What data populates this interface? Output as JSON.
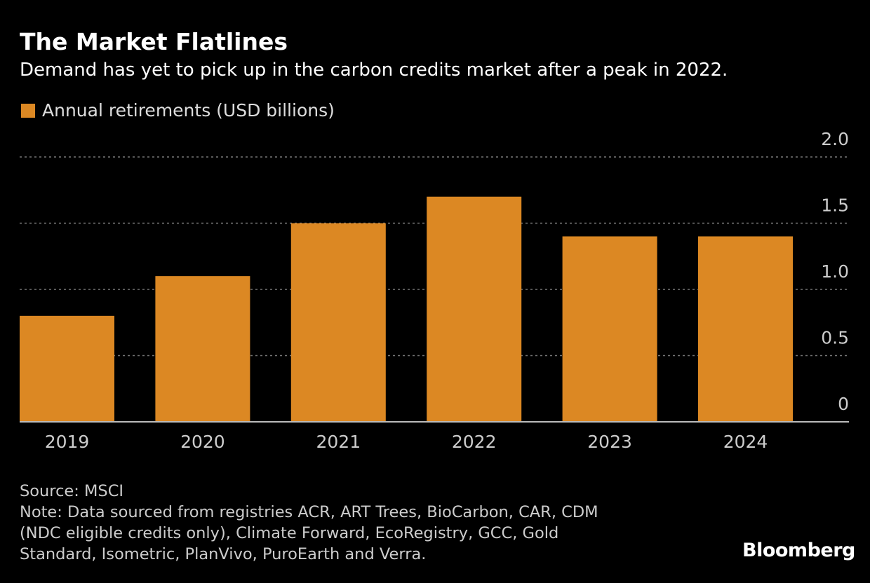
{
  "chart_data": {
    "type": "bar",
    "title": "The Market Flatlines",
    "subtitle": "Demand has yet to pick up in the carbon credits market after a peak in 2022.",
    "legend": [
      {
        "name": "Annual retirements (USD billions)",
        "color": "#dc8823"
      }
    ],
    "legend_placement": "top-left",
    "categories": [
      "2019",
      "2020",
      "2021",
      "2022",
      "2023",
      "2024"
    ],
    "series": [
      {
        "name": "Annual retirements (USD billions)",
        "values": [
          0.8,
          1.1,
          1.5,
          1.7,
          1.4,
          1.4
        ]
      }
    ],
    "ylim": [
      0,
      2.0
    ],
    "yticks": [
      0,
      0.5,
      1.0,
      1.5,
      2.0
    ],
    "ytick_labels": [
      "0",
      "0.5",
      "1.0",
      "1.5",
      "2.0"
    ],
    "y_axis_side": "right",
    "grid": "horizontal dotted",
    "xlabel": "",
    "ylabel": ""
  },
  "footer": {
    "source": "Source: MSCI",
    "note_lines": [
      "Note: Data sourced from registries ACR, ART Trees, BioCarbon, CAR, CDM",
      "(NDC eligible credits only), Climate Forward, EcoRegistry, GCC, Gold",
      "Standard, Isometric, PlanVivo, PuroEarth and Verra."
    ]
  },
  "logo": "Bloomberg",
  "colors": {
    "bar": "#dc8823",
    "background": "#000000",
    "grid": "#777777",
    "axis": "#bbbbbb"
  }
}
